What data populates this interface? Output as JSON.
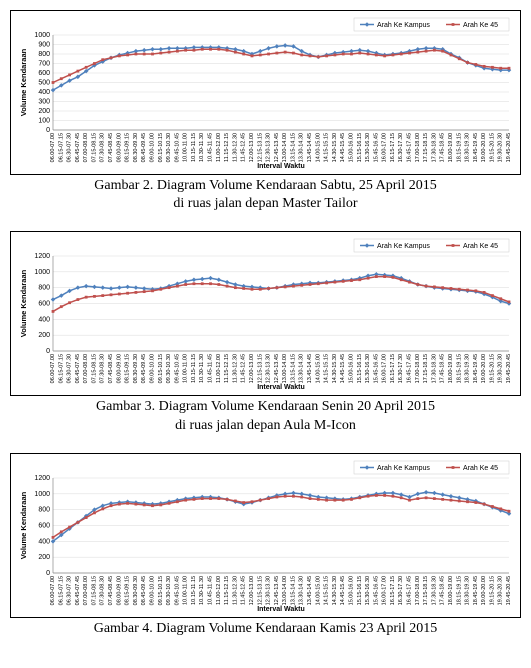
{
  "charts": [
    {
      "caption_line1": "Gambar 2. Diagram Volume Kendaraan Sabtu, 25 April 2015",
      "caption_line2": "di ruas jalan depan Master Tailor",
      "ylim": [
        0,
        1000
      ],
      "ytick_step": 100,
      "ylabel": "Volume Kendaraan",
      "xlabel": "Interval Waktu",
      "colors": {
        "kampus": "#4f81bd",
        "a45": "#c0504d",
        "grid": "#d9d9d9",
        "bg": "#ffffff"
      },
      "legend": {
        "kampus": "Arah Ke Kampus",
        "a45": "Arah Ke 45"
      },
      "x_labels": [
        "06.00-07.00",
        "06.15-07.15",
        "06.30-07.30",
        "06.45-07.45",
        "07.00-08.00",
        "07.15-08.15",
        "07.30-08.30",
        "07.45-08.45",
        "08.00-09.00",
        "08.15-09.15",
        "08.30-09.30",
        "08.45-09.45",
        "09.00-10.00",
        "09.15-10.15",
        "09.30-10.30",
        "09.45-10.45",
        "10.00-11.00",
        "10.15-11.15",
        "10.30-11.30",
        "10.45-11.45",
        "11.00-12.00",
        "11.15-12.15",
        "11.30-12.30",
        "11.45-12.45",
        "12.00-13.00",
        "12.15-13.15",
        "12.30-13.30",
        "12.45-13.45",
        "13.00-14.00",
        "13.15-14.15",
        "13.30-14.30",
        "13.45-14.45",
        "14.00-15.00",
        "14.15-15.15",
        "14.30-15.30",
        "14.45-15.45",
        "15.00-16.00",
        "15.15-16.15",
        "15.30-16.30",
        "15.45-16.45",
        "16.00-17.00",
        "16.15-17.15",
        "16.30-17.30",
        "16.45-17.45",
        "17.00-18.00",
        "17.15-18.15",
        "17.30-18.30",
        "17.45-18.45",
        "18.00-19.00",
        "18.15-19.15",
        "18.30-19.30",
        "18.45-19.45",
        "19.00-20.00",
        "19.15-20.15",
        "19.30-20.30",
        "19.45-20.45"
      ],
      "series": {
        "kampus": [
          420,
          470,
          520,
          560,
          620,
          680,
          720,
          760,
          790,
          810,
          830,
          840,
          850,
          850,
          860,
          860,
          860,
          870,
          870,
          870,
          870,
          860,
          850,
          830,
          800,
          830,
          860,
          880,
          890,
          880,
          830,
          790,
          770,
          790,
          810,
          820,
          830,
          840,
          830,
          810,
          790,
          800,
          810,
          830,
          850,
          860,
          860,
          850,
          800,
          760,
          710,
          680,
          650,
          640,
          630,
          630
        ],
        "a45": [
          500,
          540,
          580,
          620,
          660,
          700,
          740,
          760,
          780,
          790,
          800,
          800,
          800,
          810,
          820,
          830,
          840,
          840,
          850,
          850,
          850,
          840,
          820,
          800,
          780,
          790,
          800,
          810,
          820,
          810,
          790,
          780,
          770,
          780,
          790,
          800,
          800,
          810,
          800,
          790,
          780,
          790,
          800,
          810,
          820,
          830,
          840,
          830,
          790,
          750,
          710,
          690,
          670,
          660,
          650,
          650
        ]
      }
    },
    {
      "caption_line1": "Gambar 3. Diagram Volume Kendaraan Senin 20 April 2015",
      "caption_line2": "di ruas jalan depan Aula M-Icon",
      "ylim": [
        0,
        1200
      ],
      "ytick_step": 200,
      "ylabel": "Volume Kendaraan",
      "xlabel": "Interval Waktu",
      "colors": {
        "kampus": "#4f81bd",
        "a45": "#c0504d",
        "grid": "#d9d9d9",
        "bg": "#ffffff"
      },
      "legend": {
        "kampus": "Arah Ke Kampus",
        "a45": "Arah Ke 45"
      },
      "x_labels": [
        "06.00-07.00",
        "06.15-07.15",
        "06.30-07.30",
        "06.45-07.45",
        "07.00-08.00",
        "07.15-08.15",
        "07.30-08.30",
        "07.45-08.45",
        "08.00-09.00",
        "08.15-09.15",
        "08.30-09.30",
        "08.45-09.45",
        "09.00-10.00",
        "09.15-10.15",
        "09.30-10.30",
        "09.45-10.45",
        "10.00-11.00",
        "10.15-11.15",
        "10.30-11.30",
        "10.45-11.45",
        "11.00-12.00",
        "11.15-12.15",
        "11.30-12.30",
        "11.45-12.45",
        "12.00-13.00",
        "12.15-13.15",
        "12.30-13.30",
        "12.45-13.45",
        "13.00-14.00",
        "13.15-14.15",
        "13.30-14.30",
        "13.45-14.45",
        "14.00-15.00",
        "14.15-15.15",
        "14.30-15.30",
        "14.45-15.45",
        "15.00-16.00",
        "15.15-16.15",
        "15.30-16.30",
        "15.45-16.45",
        "16.00-17.00",
        "16.15-17.15",
        "16.30-17.30",
        "16.45-17.45",
        "17.00-18.00",
        "17.15-18.15",
        "17.30-18.30",
        "17.45-18.45",
        "18.00-19.00",
        "18.15-19.15",
        "18.30-19.30",
        "18.45-19.45",
        "19.00-20.00",
        "19.15-20.15",
        "19.30-20.30",
        "19.45-20.45"
      ],
      "series": {
        "kampus": [
          650,
          700,
          760,
          800,
          820,
          810,
          800,
          790,
          800,
          810,
          800,
          790,
          780,
          790,
          820,
          850,
          880,
          900,
          910,
          920,
          900,
          870,
          840,
          820,
          810,
          800,
          790,
          800,
          820,
          840,
          850,
          860,
          860,
          870,
          880,
          890,
          900,
          920,
          950,
          970,
          960,
          950,
          920,
          880,
          840,
          820,
          800,
          790,
          780,
          770,
          760,
          750,
          720,
          680,
          630,
          600
        ],
        "a45": [
          500,
          560,
          610,
          650,
          680,
          690,
          700,
          710,
          720,
          730,
          740,
          750,
          760,
          780,
          800,
          820,
          840,
          850,
          850,
          850,
          840,
          820,
          800,
          790,
          780,
          780,
          790,
          800,
          810,
          820,
          830,
          840,
          850,
          860,
          870,
          880,
          890,
          900,
          920,
          940,
          940,
          930,
          900,
          870,
          840,
          820,
          810,
          800,
          790,
          780,
          770,
          760,
          740,
          700,
          660,
          620
        ]
      }
    },
    {
      "caption_line1": "Gambar 4. Diagram Volume Kendaraan Kamis 23 April 2015",
      "caption_line2": "",
      "ylim": [
        0,
        1200
      ],
      "ytick_step": 200,
      "ylabel": "Volume Kendaraan",
      "xlabel": "Interval Waktu",
      "colors": {
        "kampus": "#4f81bd",
        "a45": "#c0504d",
        "grid": "#d9d9d9",
        "bg": "#ffffff"
      },
      "legend": {
        "kampus": "Arah Ke Kampus",
        "a45": "Arah Ke 45"
      },
      "x_labels": [
        "06.00-07.00",
        "06.15-07.15",
        "06.30-07.30",
        "06.45-07.45",
        "07.00-08.00",
        "07.15-08.15",
        "07.30-08.30",
        "07.45-08.45",
        "08.00-09.00",
        "08.15-09.15",
        "08.30-09.30",
        "08.45-09.45",
        "09.00-10.00",
        "09.15-10.15",
        "09.30-10.30",
        "09.45-10.45",
        "10.00-11.00",
        "10.15-11.15",
        "10.30-11.30",
        "10.45-11.45",
        "11.00-12.00",
        "11.15-12.15",
        "11.30-12.30",
        "11.45-12.45",
        "12.00-13.00",
        "12.15-13.15",
        "12.30-13.30",
        "12.45-13.45",
        "13.00-14.00",
        "13.15-14.15",
        "13.30-14.30",
        "13.45-14.45",
        "14.00-15.00",
        "14.15-15.15",
        "14.30-15.30",
        "14.45-15.45",
        "15.00-16.00",
        "15.15-16.15",
        "15.30-16.30",
        "15.45-16.45",
        "16.00-17.00",
        "16.15-17.15",
        "16.30-17.30",
        "16.45-17.45",
        "17.00-18.00",
        "17.15-18.15",
        "17.30-18.30",
        "17.45-18.45",
        "18.00-19.00",
        "18.15-19.15",
        "18.30-19.30",
        "18.45-19.45",
        "19.00-20.00",
        "19.15-20.15",
        "19.30-20.30",
        "19.45-20.45"
      ],
      "series": {
        "kampus": [
          400,
          480,
          560,
          640,
          720,
          800,
          850,
          880,
          890,
          900,
          890,
          880,
          870,
          880,
          900,
          920,
          940,
          950,
          960,
          960,
          950,
          930,
          900,
          870,
          890,
          920,
          950,
          980,
          1000,
          1010,
          1000,
          980,
          960,
          950,
          940,
          930,
          940,
          960,
          980,
          1000,
          1010,
          1010,
          990,
          960,
          1000,
          1020,
          1010,
          990,
          970,
          950,
          930,
          910,
          870,
          830,
          790,
          750
        ],
        "a45": [
          450,
          520,
          580,
          640,
          700,
          760,
          810,
          850,
          870,
          880,
          870,
          860,
          850,
          860,
          880,
          900,
          920,
          930,
          940,
          940,
          940,
          930,
          910,
          890,
          900,
          920,
          940,
          960,
          970,
          970,
          960,
          940,
          930,
          920,
          920,
          920,
          930,
          950,
          970,
          980,
          980,
          970,
          950,
          920,
          940,
          950,
          940,
          930,
          920,
          910,
          900,
          890,
          870,
          840,
          810,
          780
        ]
      }
    }
  ]
}
